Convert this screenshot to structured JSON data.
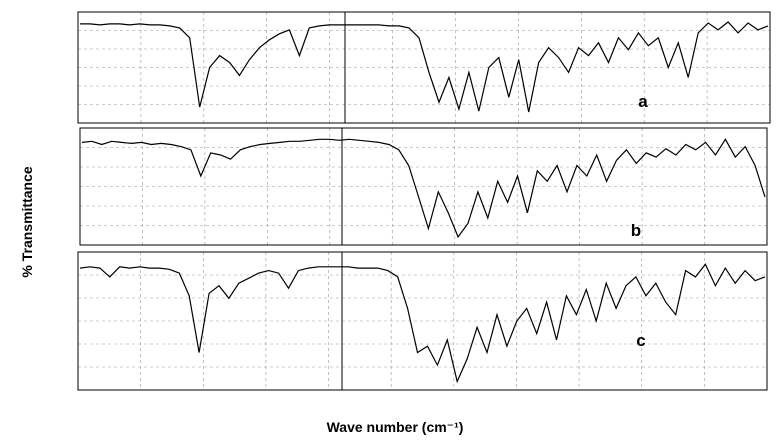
{
  "ylabel": "% Transmittance",
  "xlabel": "Wave number (cm⁻¹)",
  "chart_data": [
    {
      "type": "line",
      "annotation": "a",
      "color": "#000000",
      "ylim": [
        0,
        100
      ],
      "grid": true,
      "values": [
        94,
        94,
        93,
        94,
        94,
        93,
        94,
        93,
        93,
        92,
        90,
        80,
        10,
        50,
        62,
        55,
        42,
        58,
        70,
        78,
        84,
        88,
        62,
        90,
        92,
        93,
        93,
        93,
        93,
        93,
        93,
        92,
        92,
        90,
        80,
        45,
        15,
        40,
        8,
        45,
        6,
        50,
        60,
        20,
        58,
        5,
        55,
        70,
        60,
        45,
        70,
        62,
        75,
        55,
        80,
        68,
        85,
        72,
        80,
        50,
        75,
        40,
        85,
        95,
        88,
        96,
        85,
        95,
        88,
        92
      ]
    },
    {
      "type": "line",
      "annotation": "b",
      "color": "#000000",
      "ylim": [
        0,
        100
      ],
      "grid": true,
      "values": [
        92,
        93,
        90,
        93,
        92,
        91,
        92,
        90,
        91,
        90,
        88,
        85,
        60,
        82,
        80,
        76,
        85,
        88,
        90,
        91,
        92,
        93,
        93,
        94,
        95,
        95,
        94,
        95,
        94,
        93,
        92,
        90,
        85,
        70,
        40,
        10,
        45,
        25,
        2,
        15,
        45,
        20,
        55,
        35,
        60,
        25,
        65,
        55,
        70,
        45,
        70,
        60,
        80,
        55,
        75,
        85,
        72,
        82,
        78,
        86,
        80,
        90,
        85,
        92,
        80,
        95,
        78,
        88,
        70,
        40
      ]
    },
    {
      "type": "line",
      "annotation": "c",
      "color": "#000000",
      "ylim": [
        0,
        100
      ],
      "grid": true,
      "values": [
        92,
        93,
        92,
        85,
        93,
        92,
        93,
        92,
        92,
        91,
        88,
        70,
        25,
        72,
        78,
        68,
        80,
        84,
        88,
        90,
        88,
        76,
        90,
        92,
        93,
        93,
        93,
        93,
        92,
        92,
        92,
        90,
        85,
        60,
        25,
        30,
        15,
        35,
        2,
        20,
        45,
        25,
        55,
        30,
        50,
        60,
        40,
        65,
        35,
        70,
        55,
        75,
        50,
        80,
        60,
        78,
        85,
        70,
        80,
        65,
        55,
        90,
        85,
        95,
        78,
        92,
        80,
        90,
        82,
        85
      ]
    }
  ]
}
